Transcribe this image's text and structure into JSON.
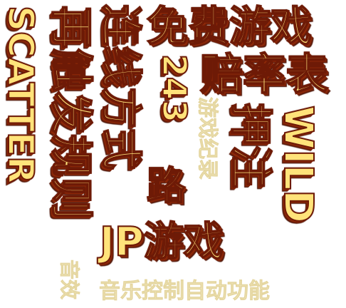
{
  "labels": {
    "free_game": "免费游戏",
    "paytable": "赔率表",
    "scatter": "SCATTER",
    "trigger_rules": "再触发规则",
    "line_mode": "连线方式",
    "lines_243": "243",
    "lines_unit": "路",
    "bet": "押注",
    "wild": "WILD",
    "jp_game": "JP游戏",
    "game_record": "游戏纪录",
    "music_auto": "音乐控制自动功能",
    "music_side": "音效"
  },
  "colors": {
    "text_fill": "#ffe37a",
    "outline": "#6e1a06",
    "bevel": "#a4330a",
    "pale_text": "#f1e7bd",
    "background": "#ffffff"
  }
}
